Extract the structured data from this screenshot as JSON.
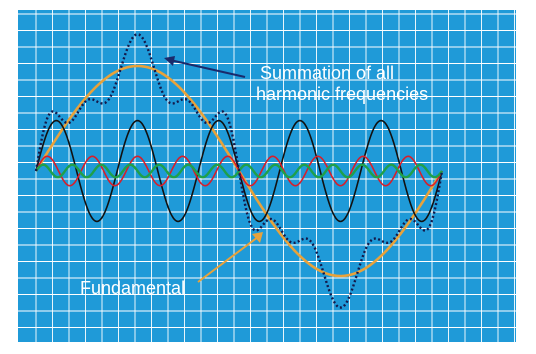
{
  "labels": {
    "summation_line1": "Summation of all",
    "summation_line2": "harmonic frequencies",
    "fundamental": "Fundamental"
  },
  "colors": {
    "background": "#1f9ad8",
    "grid": "#ffffff",
    "fundamental": "#e8a23a",
    "third_harmonic": "#111111",
    "fifth_harmonic": "#d81e2a",
    "seventh_harmonic": "#1fa04a",
    "summation": "#14194a",
    "summation_arrow": "#1a2a6c",
    "fundamental_arrow": "#e8a23a"
  },
  "waves": [
    {
      "id": "fundamental",
      "cycles": 1,
      "amplitude": 1.0
    },
    {
      "id": "third_harmonic",
      "cycles": 5,
      "amplitude": 0.48
    },
    {
      "id": "fifth_harmonic",
      "cycles": 9,
      "amplitude": 0.14
    },
    {
      "id": "seventh_harmonic",
      "cycles": 14,
      "amplitude": 0.06
    }
  ],
  "summation": {
    "style": "dotted"
  }
}
